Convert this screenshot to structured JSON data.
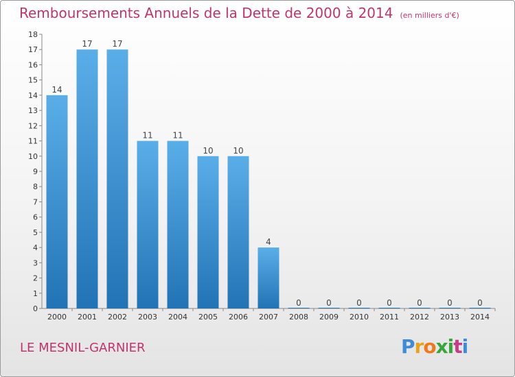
{
  "chart_data": {
    "type": "bar",
    "title": "Remboursements Annuels de la Dette de 2000 à 2014",
    "subtitle": "(en milliers d'€)",
    "categories": [
      "2000",
      "2001",
      "2002",
      "2003",
      "2004",
      "2005",
      "2006",
      "2007",
      "2008",
      "2009",
      "2010",
      "2011",
      "2012",
      "2013",
      "2014"
    ],
    "values": [
      14,
      17,
      17,
      11,
      11,
      10,
      10,
      4,
      0,
      0,
      0,
      0,
      0,
      0,
      0
    ],
    "ylim": [
      0,
      18
    ],
    "yticks": [
      0,
      1,
      2,
      3,
      4,
      5,
      6,
      7,
      8,
      9,
      10,
      11,
      12,
      13,
      14,
      15,
      16,
      17,
      18
    ],
    "xlabel": "",
    "ylabel": "",
    "grid": false,
    "bar_color_top": "#5aaee8",
    "bar_color_bottom": "#2273b5"
  },
  "commune": "LE MESNIL-GARNIER",
  "brand": {
    "letters": [
      "P",
      "r",
      "o",
      "x",
      "i",
      "t",
      "i"
    ]
  },
  "colors": {
    "title": "#c0346e",
    "bar": "#3b8fd4"
  }
}
